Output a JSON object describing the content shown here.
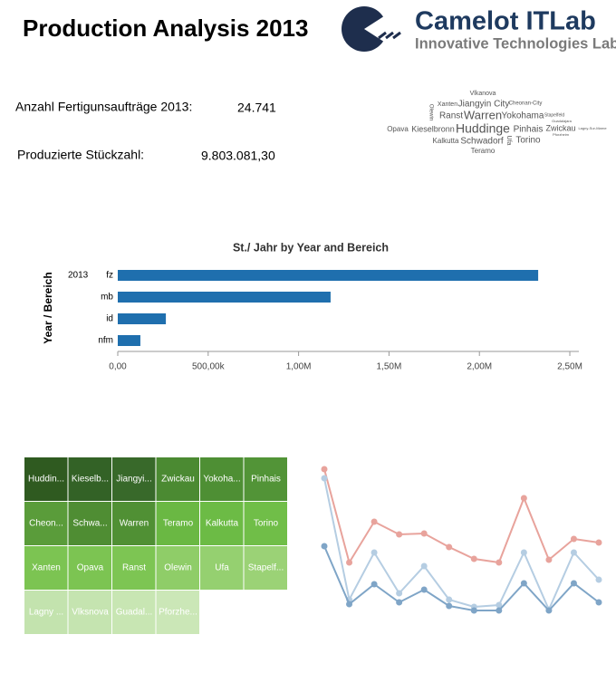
{
  "header": {
    "title": "Production Analysis 2013",
    "logo": {
      "name": "Camelot ITLab",
      "tagline": "Innovative Technologies Lab"
    }
  },
  "kpis": [
    {
      "label": "Anzahl Fertigunsaufträge 2013:",
      "value": "24.741"
    },
    {
      "label": "Produzierte Stückzahl:",
      "value": "9.803.081,30"
    }
  ],
  "word_cloud": {
    "words": [
      "Vlkanova",
      "Xanten",
      "Jiangyin City",
      "Cheonan-City",
      "Ranst",
      "Warren",
      "Yokohama",
      "Stapelfeld",
      "Guadalajara",
      "Opava",
      "Kieselbronn",
      "Huddinge",
      "Pinhais",
      "Zwickau",
      "Lagny-Sur-Marne",
      "Pforzheim",
      "Kalkutta",
      "Schwadorf",
      "Torino",
      "Teramo",
      "Olewin",
      "Ufa"
    ]
  },
  "treemap": {
    "cells": [
      {
        "label": "Huddin...",
        "color": "#2f5a20"
      },
      {
        "label": "Kieselb...",
        "color": "#336226"
      },
      {
        "label": "Jiangyi...",
        "color": "#38692a"
      },
      {
        "label": "Zwickau",
        "color": "#4b8a32"
      },
      {
        "label": "Yokoha...",
        "color": "#4e8f34"
      },
      {
        "label": "Pinhais",
        "color": "#529437"
      },
      {
        "label": "Cheon...",
        "color": "#5a9c3a"
      },
      {
        "label": "Schwa...",
        "color": "#4f8d33"
      },
      {
        "label": "Warren",
        "color": "#509034"
      },
      {
        "label": "Teramo",
        "color": "#6ab843"
      },
      {
        "label": "Kalkutta",
        "color": "#6cbb45"
      },
      {
        "label": "Torino",
        "color": "#70be48"
      },
      {
        "label": "Xanten",
        "color": "#7cc452"
      },
      {
        "label": "Opava",
        "color": "#7cc452"
      },
      {
        "label": "Ranst",
        "color": "#7dc553"
      },
      {
        "label": "Olewin",
        "color": "#8fcd68"
      },
      {
        "label": "Ufa",
        "color": "#95d070"
      },
      {
        "label": "Stapelf...",
        "color": "#9bd276"
      },
      {
        "label": "Lagny ...",
        "color": "#c3e3ae"
      },
      {
        "label": "Vlksnova",
        "color": "#c5e4b0"
      },
      {
        "label": "Guadal...",
        "color": "#c8e6b3"
      },
      {
        "label": "Pforzhe...",
        "color": "#cbe7b7"
      }
    ]
  },
  "chart_data": [
    {
      "type": "bar",
      "title": "St./ Jahr by Year and Bereich",
      "y_label": "Year / Bereich",
      "group": "2013",
      "categories": [
        "fz",
        "mb",
        "id",
        "nfm"
      ],
      "values": [
        2325000,
        1177000,
        266000,
        125000
      ],
      "color": "#1f6fae",
      "xlim": [
        0,
        2550000
      ],
      "xticks": [
        {
          "value": 0,
          "label": "0,00"
        },
        {
          "value": 500000,
          "label": "500,00k"
        },
        {
          "value": 1000000,
          "label": "1,00M"
        },
        {
          "value": 1500000,
          "label": "1,50M"
        },
        {
          "value": 2000000,
          "label": "2,00M"
        },
        {
          "value": 2500000,
          "label": "2,50M"
        }
      ]
    },
    {
      "type": "line",
      "ylim": [
        0,
        170
      ],
      "series": [
        {
          "color": "#e8a39c",
          "values": [
            162,
            59,
            104,
            90,
            91,
            76,
            63,
            59,
            130,
            62,
            85,
            81
          ]
        },
        {
          "color": "#b5cde2",
          "values": [
            152,
            18,
            70,
            25,
            55,
            18,
            10,
            12,
            70,
            7,
            70,
            40
          ]
        },
        {
          "color": "#7fa5c7",
          "values": [
            77,
            13,
            35,
            15,
            29,
            11,
            6,
            6,
            36,
            6,
            36,
            15
          ]
        }
      ]
    }
  ]
}
